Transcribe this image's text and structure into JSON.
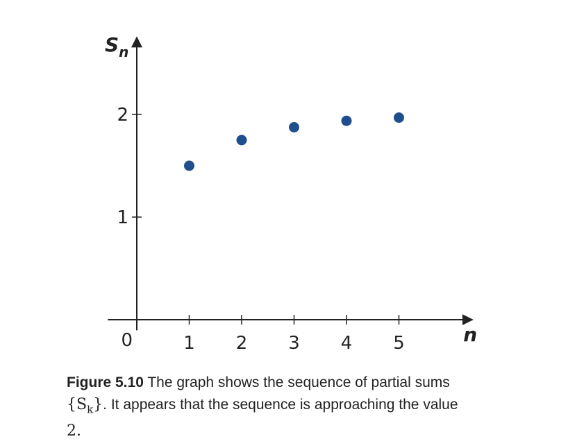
{
  "chart_data": {
    "type": "scatter",
    "x": [
      1,
      2,
      3,
      4,
      5
    ],
    "y": [
      1.5,
      1.75,
      1.875,
      1.9375,
      1.96875
    ],
    "xlabel": "n",
    "ylabel_main": "S",
    "ylabel_sub": "n",
    "origin_label": "0",
    "xticks": [
      "1",
      "2",
      "3",
      "4",
      "5"
    ],
    "yticks": [
      "1",
      "2"
    ],
    "xlim": [
      -0.5,
      6.4
    ],
    "ylim": [
      -0.05,
      2.75
    ],
    "grid": false,
    "marker_color": "#1f4e8c",
    "axis_color": "#222222"
  },
  "caption": {
    "label": "Figure 5.10",
    "text_part1": " The graph shows the sequence of partial sums",
    "math_set": "{S",
    "math_sub": "k",
    "math_close": "}",
    "text_part2": ". It appears that the sequence is approaching the value",
    "math_value": "2."
  }
}
